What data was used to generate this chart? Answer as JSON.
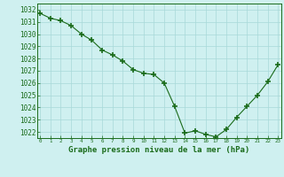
{
  "x": [
    0,
    1,
    2,
    3,
    4,
    5,
    6,
    7,
    8,
    9,
    10,
    11,
    12,
    13,
    14,
    15,
    16,
    17,
    18,
    19,
    20,
    21,
    22,
    23
  ],
  "y": [
    1031.7,
    1031.3,
    1031.1,
    1030.7,
    1030.0,
    1029.5,
    1028.7,
    1028.3,
    1027.8,
    1027.1,
    1026.8,
    1026.7,
    1026.0,
    1024.1,
    1021.9,
    1022.1,
    1021.8,
    1021.6,
    1022.2,
    1023.2,
    1024.1,
    1025.0,
    1026.1,
    1027.5
  ],
  "line_color": "#1a6b1a",
  "marker_color": "#1a6b1a",
  "bg_color": "#cff0f0",
  "grid_color": "#a8d8d8",
  "title": "Graphe pression niveau de la mer (hPa)",
  "xlabel_fontsize": 6.5,
  "ylim_min": 1021.5,
  "ylim_max": 1032.5,
  "yticks": [
    1022,
    1023,
    1024,
    1025,
    1026,
    1027,
    1028,
    1029,
    1030,
    1031,
    1032
  ],
  "xticks": [
    0,
    1,
    2,
    3,
    4,
    5,
    6,
    7,
    8,
    9,
    10,
    11,
    12,
    13,
    14,
    15,
    16,
    17,
    18,
    19,
    20,
    21,
    22,
    23
  ],
  "tick_color": "#1a6b1a",
  "axis_color": "#1a6b1a",
  "text_color": "#1a6b1a",
  "ytick_fontsize": 5.5,
  "xtick_fontsize": 4.2
}
